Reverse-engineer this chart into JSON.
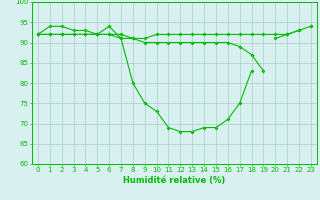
{
  "xlabel": "Humidité relative (%)",
  "line1": {
    "x": [
      0,
      1,
      2,
      3,
      4,
      5,
      6,
      7,
      8,
      9,
      10,
      11,
      12,
      13,
      14,
      15,
      16,
      17,
      18,
      19,
      20,
      21,
      22,
      23
    ],
    "y": [
      92,
      94,
      94,
      93,
      93,
      92,
      94,
      91,
      80,
      75,
      73,
      69,
      68,
      68,
      69,
      69,
      71,
      75,
      83,
      null,
      91,
      92,
      93,
      null
    ]
  },
  "line3": {
    "x": [
      0,
      1,
      2,
      3,
      4,
      5,
      6,
      7,
      8,
      9,
      10,
      11,
      12,
      13,
      14,
      15,
      16,
      17,
      18,
      19,
      20,
      21,
      22,
      23
    ],
    "y": [
      92,
      92,
      92,
      92,
      92,
      92,
      92,
      92,
      91,
      91,
      92,
      92,
      92,
      92,
      92,
      92,
      92,
      92,
      92,
      92,
      92,
      92,
      93,
      94
    ]
  },
  "line4": {
    "x": [
      0,
      1,
      2,
      3,
      4,
      5,
      6,
      7,
      8,
      9,
      10,
      11,
      12,
      13,
      14,
      15,
      16,
      17,
      18,
      19,
      20,
      21,
      22,
      23
    ],
    "y": [
      92,
      92,
      92,
      92,
      92,
      92,
      92,
      91,
      91,
      90,
      90,
      90,
      90,
      90,
      90,
      90,
      90,
      89,
      87,
      83,
      null,
      null,
      null,
      94
    ]
  },
  "color": "#00bb00",
  "bg_color": "#d8f0f0",
  "grid_color": "#aacccc",
  "ylim": [
    60,
    100
  ],
  "xlim_min": -0.5,
  "xlim_max": 23.5,
  "yticks": [
    60,
    65,
    70,
    75,
    80,
    85,
    90,
    95,
    100
  ],
  "xticks": [
    0,
    1,
    2,
    3,
    4,
    5,
    6,
    7,
    8,
    9,
    10,
    11,
    12,
    13,
    14,
    15,
    16,
    17,
    18,
    19,
    20,
    21,
    22,
    23
  ],
  "xlabel_fontsize": 6,
  "tick_fontsize": 5,
  "marker_size": 2.0,
  "line_width": 0.8
}
